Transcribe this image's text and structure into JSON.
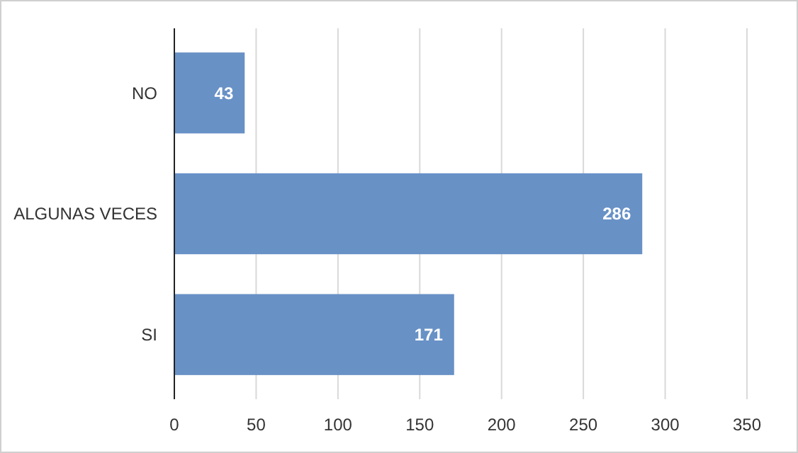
{
  "chart_data": {
    "type": "bar",
    "orientation": "horizontal",
    "categories": [
      "NO",
      "ALGUNAS VECES",
      "SI"
    ],
    "values": [
      43,
      286,
      171
    ],
    "color": "#6891c6",
    "xlim": [
      0,
      350
    ],
    "xticks": [
      0,
      50,
      100,
      150,
      200,
      250,
      300,
      350
    ],
    "grid": "x",
    "data_labels": true
  }
}
